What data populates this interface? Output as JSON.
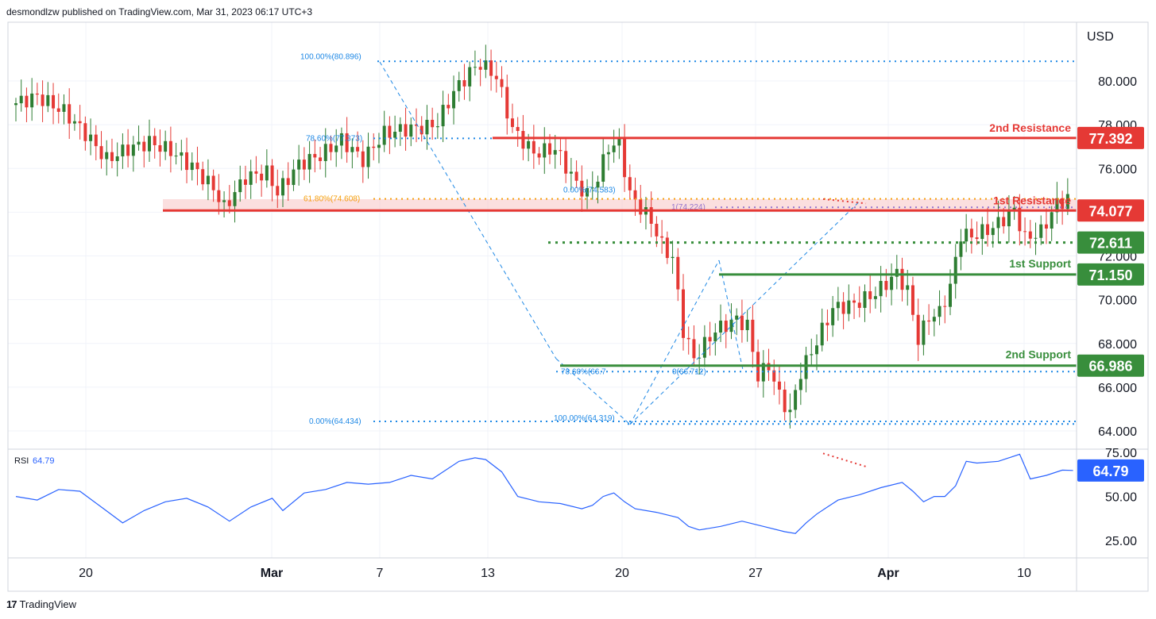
{
  "header": {
    "text": "desmondlzw published on TradingView.com, Mar 31, 2023 06:17 UTC+3"
  },
  "footer": {
    "brand": "TradingView"
  },
  "colors": {
    "up": "#2e7d32",
    "down": "#e53935",
    "resistance": "#e53935",
    "support": "#388e3c",
    "fib": "#1e88e5",
    "rsi": "#2962ff",
    "grid": "#f0f3fa"
  },
  "chart_data": {
    "type": "candlestick",
    "price_axis": {
      "unit": "USD",
      "ticks": [
        "80.000",
        "78.000",
        "76.000",
        "74.000",
        "72.000",
        "70.000",
        "68.000",
        "66.000",
        "64.000"
      ],
      "range": [
        63.2,
        81.7
      ]
    },
    "time_axis": {
      "ticks": [
        "20",
        "Mar",
        "7",
        "13",
        "20",
        "27",
        "Apr",
        "10"
      ]
    },
    "levels": [
      {
        "label": "2nd Resistance",
        "value": "77.392"
      },
      {
        "label": "1st Resistance",
        "value": "74.077"
      },
      {
        "label": "",
        "value": "72.611"
      },
      {
        "label": "1st Support",
        "value": "71.150"
      },
      {
        "label": "2nd Support",
        "value": "66.986"
      }
    ],
    "fib_labels": [
      {
        "text": "100.00%(80.896)"
      },
      {
        "text": "78.60%(77.373)"
      },
      {
        "text": "61.80%(74.608)"
      },
      {
        "text": "0.00%(74.583)"
      },
      {
        "text": "1(74.224)"
      },
      {
        "text": "78.60%(66.7"
      },
      {
        "text": "0(66.712)"
      },
      {
        "text": "100.00%(64.319)"
      },
      {
        "text": "0.00%(64.434)"
      }
    ],
    "close_path": [
      [
        0,
        78.9
      ],
      [
        5,
        79.3
      ],
      [
        10,
        78.6
      ],
      [
        14,
        77.6
      ],
      [
        18,
        76.4
      ],
      [
        22,
        76.9
      ],
      [
        26,
        77.2
      ],
      [
        30,
        76.8
      ],
      [
        34,
        76.1
      ],
      [
        38,
        75.1
      ],
      [
        40,
        74.2
      ],
      [
        44,
        75.6
      ],
      [
        48,
        75.8
      ],
      [
        50,
        74.9
      ],
      [
        54,
        76.2
      ],
      [
        58,
        76.6
      ],
      [
        62,
        77.3
      ],
      [
        66,
        76.4
      ],
      [
        70,
        77.6
      ],
      [
        74,
        77.8
      ],
      [
        78,
        77.9
      ],
      [
        80,
        78.1
      ],
      [
        83,
        79.5
      ],
      [
        86,
        80.4
      ],
      [
        88,
        80.8
      ],
      [
        91,
        80.2
      ],
      [
        94,
        77.8
      ],
      [
        98,
        76.7
      ],
      [
        102,
        76.9
      ],
      [
        106,
        75.3
      ],
      [
        108,
        74.8
      ],
      [
        110,
        75.6
      ],
      [
        112,
        77.0
      ],
      [
        114,
        77.1
      ],
      [
        116,
        74.8
      ],
      [
        120,
        73.6
      ],
      [
        122,
        72.5
      ],
      [
        124,
        71.9
      ],
      [
        126,
        68.6
      ],
      [
        128,
        67.3
      ],
      [
        132,
        68.6
      ],
      [
        136,
        69.1
      ],
      [
        138,
        68.8
      ],
      [
        140,
        66.5
      ],
      [
        142,
        67.0
      ],
      [
        144,
        65.6
      ],
      [
        146,
        64.8
      ],
      [
        148,
        66.7
      ],
      [
        150,
        67.6
      ],
      [
        152,
        68.6
      ],
      [
        154,
        69.6
      ],
      [
        158,
        69.8
      ],
      [
        162,
        70.3
      ],
      [
        166,
        71.2
      ],
      [
        168,
        70.4
      ],
      [
        170,
        68.2
      ],
      [
        172,
        69.2
      ],
      [
        174,
        69.4
      ],
      [
        176,
        70.6
      ],
      [
        178,
        73.0
      ],
      [
        180,
        72.9
      ],
      [
        184,
        73.3
      ],
      [
        188,
        74.1
      ],
      [
        190,
        72.8
      ],
      [
        193,
        73.1
      ],
      [
        196,
        74.4
      ],
      [
        198,
        74.6
      ]
    ],
    "rsi": {
      "label": "RSI",
      "value": "64.79",
      "ticks": [
        "75.00",
        "50.00",
        "25.00"
      ],
      "range": [
        16,
        76
      ],
      "values": [
        [
          0,
          50
        ],
        [
          4,
          48
        ],
        [
          8,
          54
        ],
        [
          12,
          53
        ],
        [
          16,
          44
        ],
        [
          20,
          35
        ],
        [
          24,
          42
        ],
        [
          28,
          47
        ],
        [
          32,
          49
        ],
        [
          36,
          44
        ],
        [
          40,
          36
        ],
        [
          44,
          44
        ],
        [
          48,
          49
        ],
        [
          50,
          42
        ],
        [
          54,
          52
        ],
        [
          58,
          54
        ],
        [
          62,
          58
        ],
        [
          66,
          57
        ],
        [
          70,
          58
        ],
        [
          74,
          62
        ],
        [
          78,
          60
        ],
        [
          80,
          64
        ],
        [
          83,
          70
        ],
        [
          86,
          72
        ],
        [
          88,
          71
        ],
        [
          91,
          64
        ],
        [
          94,
          50
        ],
        [
          98,
          47
        ],
        [
          102,
          46
        ],
        [
          106,
          43
        ],
        [
          108,
          45
        ],
        [
          110,
          50
        ],
        [
          112,
          52
        ],
        [
          114,
          47
        ],
        [
          116,
          43
        ],
        [
          120,
          41
        ],
        [
          124,
          38
        ],
        [
          126,
          33
        ],
        [
          128,
          31
        ],
        [
          132,
          33
        ],
        [
          136,
          36
        ],
        [
          140,
          33
        ],
        [
          144,
          30
        ],
        [
          146,
          29
        ],
        [
          148,
          35
        ],
        [
          150,
          40
        ],
        [
          152,
          44
        ],
        [
          154,
          48
        ],
        [
          158,
          51
        ],
        [
          162,
          55
        ],
        [
          166,
          58
        ],
        [
          168,
          53
        ],
        [
          170,
          47
        ],
        [
          172,
          50
        ],
        [
          174,
          50
        ],
        [
          176,
          56
        ],
        [
          178,
          70
        ],
        [
          180,
          69
        ],
        [
          184,
          70
        ],
        [
          188,
          74
        ],
        [
          190,
          60
        ],
        [
          193,
          62
        ],
        [
          196,
          65
        ],
        [
          198,
          64.79
        ]
      ]
    }
  }
}
